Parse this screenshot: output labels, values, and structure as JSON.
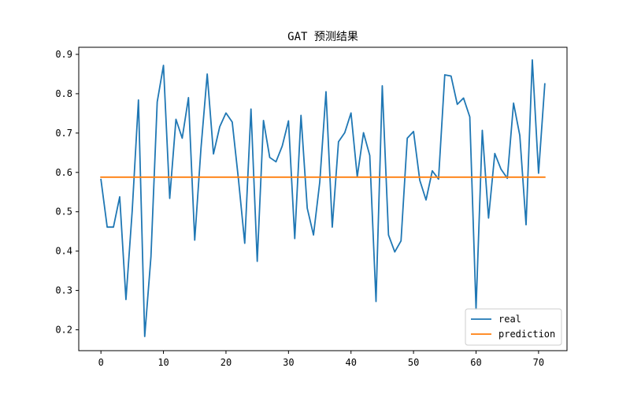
{
  "chart_data": {
    "type": "line",
    "title": "GAT 预测结果",
    "xlabel": "",
    "ylabel": "",
    "xlim": [
      -3.55,
      74.55
    ],
    "ylim": [
      0.147,
      0.918
    ],
    "xticks": [
      0,
      10,
      20,
      30,
      40,
      50,
      60,
      70
    ],
    "yticks": [
      0.2,
      0.3,
      0.4,
      0.5,
      0.6,
      0.7,
      0.8,
      0.9
    ],
    "ytick_labels": [
      "0.2",
      "0.3",
      "0.4",
      "0.5",
      "0.6",
      "0.7",
      "0.8",
      "0.9"
    ],
    "grid": false,
    "legend_position": "bottom-right",
    "series": [
      {
        "name": "real",
        "color": "#1f77b4",
        "values": [
          0.582,
          0.461,
          0.461,
          0.538,
          0.277,
          0.502,
          0.784,
          0.183,
          0.386,
          0.779,
          0.872,
          0.534,
          0.735,
          0.687,
          0.79,
          0.428,
          0.661,
          0.85,
          0.647,
          0.716,
          0.751,
          0.728,
          0.582,
          0.42,
          0.761,
          0.374,
          0.732,
          0.638,
          0.627,
          0.667,
          0.731,
          0.432,
          0.745,
          0.509,
          0.441,
          0.575,
          0.805,
          0.461,
          0.678,
          0.701,
          0.751,
          0.589,
          0.701,
          0.643,
          0.272,
          0.82,
          0.441,
          0.398,
          0.426,
          0.687,
          0.704,
          0.58,
          0.53,
          0.604,
          0.583,
          0.848,
          0.845,
          0.773,
          0.789,
          0.741,
          0.252,
          0.707,
          0.484,
          0.648,
          0.608,
          0.585,
          0.776,
          0.694,
          0.467,
          0.886,
          0.598,
          0.825
        ]
      },
      {
        "name": "prediction",
        "color": "#ff7f0e",
        "values": [
          0.588,
          0.588,
          0.588,
          0.588,
          0.588,
          0.588,
          0.588,
          0.588,
          0.588,
          0.588,
          0.588,
          0.588,
          0.588,
          0.588,
          0.588,
          0.588,
          0.588,
          0.588,
          0.588,
          0.588,
          0.588,
          0.588,
          0.588,
          0.588,
          0.588,
          0.588,
          0.588,
          0.588,
          0.588,
          0.588,
          0.588,
          0.588,
          0.588,
          0.588,
          0.588,
          0.588,
          0.588,
          0.588,
          0.588,
          0.588,
          0.588,
          0.588,
          0.588,
          0.588,
          0.588,
          0.588,
          0.588,
          0.588,
          0.588,
          0.588,
          0.588,
          0.588,
          0.588,
          0.588,
          0.588,
          0.588,
          0.588,
          0.588,
          0.588,
          0.588,
          0.588,
          0.588,
          0.588,
          0.588,
          0.588,
          0.588,
          0.588,
          0.588,
          0.588,
          0.588,
          0.588,
          0.588
        ]
      }
    ]
  }
}
